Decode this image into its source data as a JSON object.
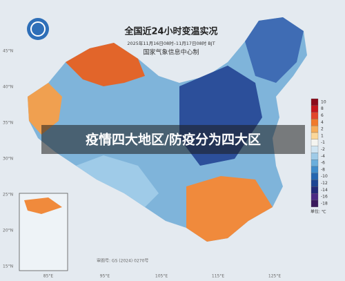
{
  "header": {
    "title": "全国近24小时变温实况",
    "subtitle": "2025年11月16日08时–11月17日08时 BJT",
    "producer": "国家气象信息中心制"
  },
  "banner": "疫情四大地区/防疫分为四大区",
  "latitude_labels": [
    "45°N",
    "40°N",
    "35°N",
    "30°N",
    "25°N",
    "20°N",
    "15°N"
  ],
  "longitude_labels": [
    "85°E",
    "95°E",
    "105°E",
    "115°E",
    "125°E"
  ],
  "legend": {
    "items": [
      {
        "label": "10",
        "color": "#8b0a1a"
      },
      {
        "label": "8",
        "color": "#c4161c"
      },
      {
        "label": "6",
        "color": "#e2452a"
      },
      {
        "label": "4",
        "color": "#f07a2c"
      },
      {
        "label": "2",
        "color": "#f6ad5a"
      },
      {
        "label": "1",
        "color": "#fbd79a"
      },
      {
        "label": "-1",
        "color": "#f4f4f0"
      },
      {
        "label": "-2",
        "color": "#cfe4f2"
      },
      {
        "label": "-4",
        "color": "#9fcbe8"
      },
      {
        "label": "-6",
        "color": "#6aaedc"
      },
      {
        "label": "-8",
        "color": "#3f8ccb"
      },
      {
        "label": "-10",
        "color": "#2466b0"
      },
      {
        "label": "-12",
        "color": "#1c4592"
      },
      {
        "label": "-14",
        "color": "#222a78"
      },
      {
        "label": "-16",
        "color": "#4a2a84"
      },
      {
        "label": "-18",
        "color": "#3a1a5c"
      }
    ],
    "unit": "单位: ℃"
  },
  "map_approval": "审图号: GS (2024) 0270号"
}
